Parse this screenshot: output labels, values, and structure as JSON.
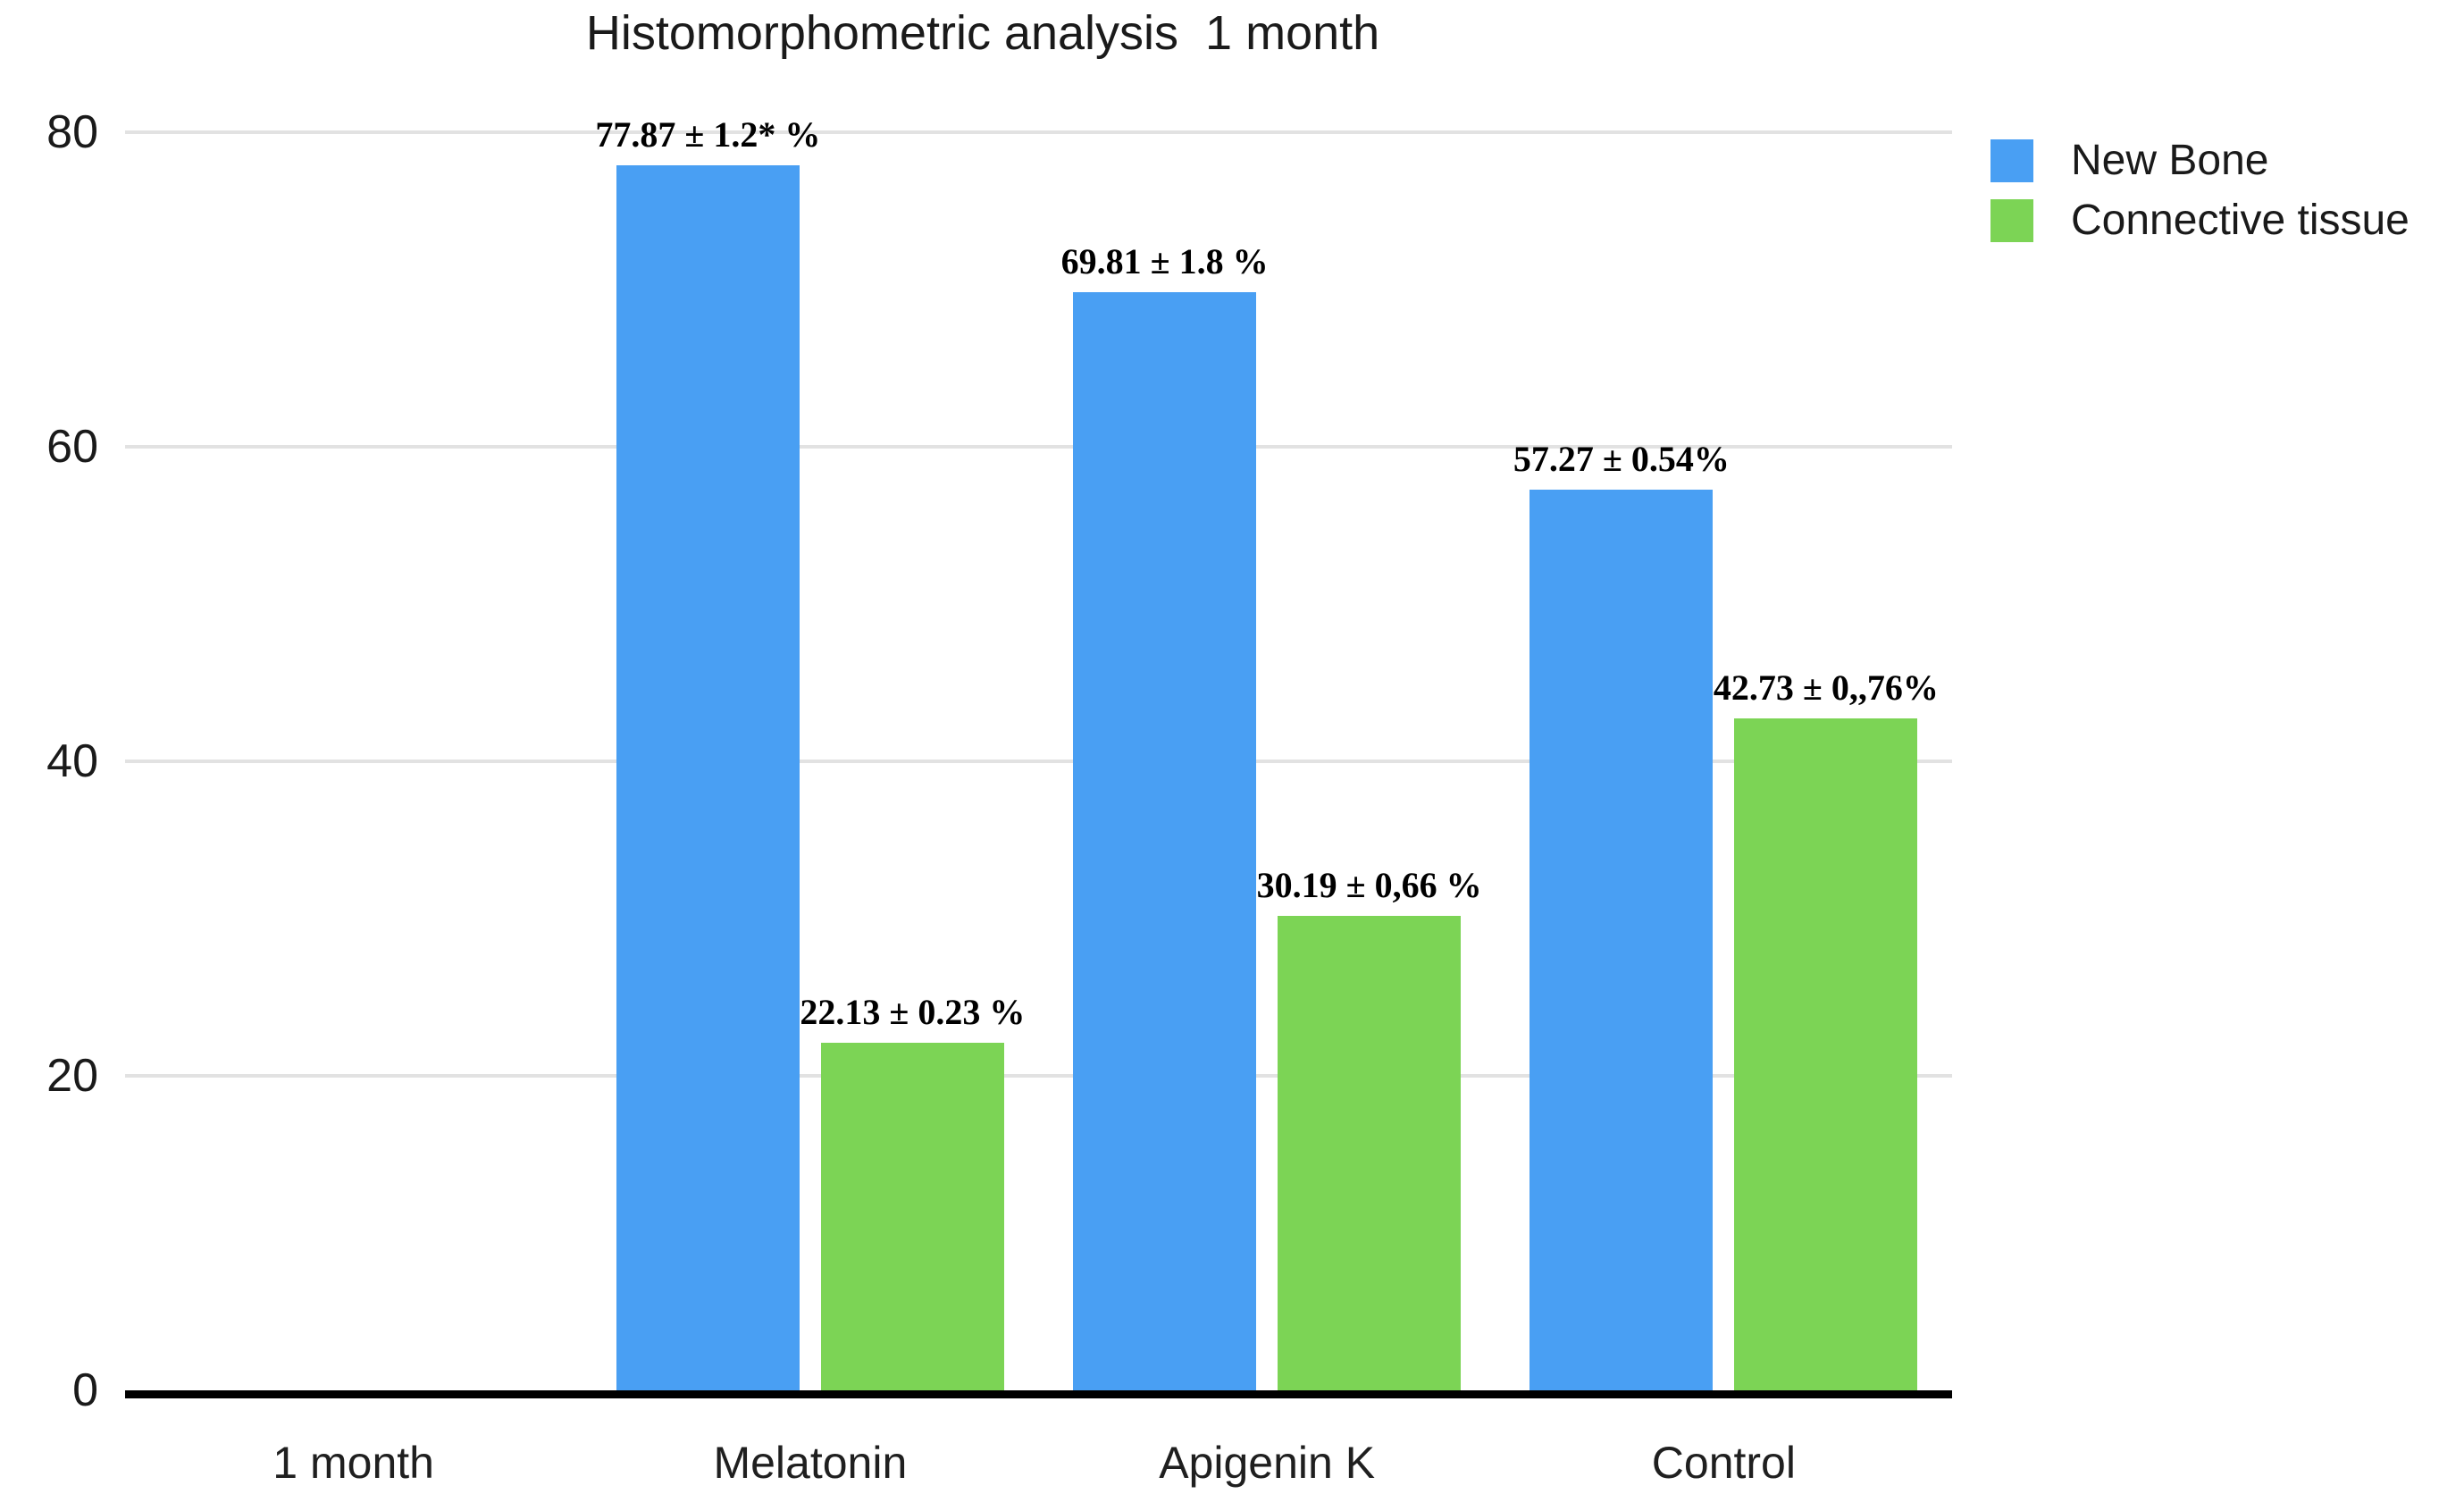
{
  "title": "Histomorphometric analysis  1 month",
  "colors": {
    "new_bone_blue": "#499FF3",
    "connective_green": "#7CD455",
    "gridline": "#E2E2E2",
    "axis": "#000000"
  },
  "legend": [
    {
      "label": "New Bone",
      "color": "#499FF3"
    },
    {
      "label": "Connective tissue",
      "color": "#7CD455"
    }
  ],
  "chart_data": {
    "type": "bar",
    "title": "Histomorphometric analysis  1 month",
    "categories": [
      "1 month",
      "Melatonin",
      "Apigenin K",
      "Control"
    ],
    "series": [
      {
        "name": "New Bone",
        "color": "#499FF3",
        "values": [
          null,
          77.87,
          69.81,
          57.27
        ],
        "labels": [
          "",
          "77.87 ± 1.2* %",
          "69.81 ± 1.8 %",
          "57.27 ± 0.54%"
        ]
      },
      {
        "name": "Connective tissue",
        "color": "#7CD455",
        "values": [
          null,
          22.13,
          30.19,
          42.73
        ],
        "labels": [
          "",
          "22.13 ± 0.23 %",
          "30.19 ± 0,66 %",
          "42.73 ± 0,,76%"
        ]
      }
    ],
    "xlabel": "",
    "ylabel": "",
    "ylim": [
      0,
      80
    ],
    "yticks": [
      0,
      20,
      40,
      60,
      80
    ],
    "grid": true,
    "legend_position": "top-right"
  }
}
